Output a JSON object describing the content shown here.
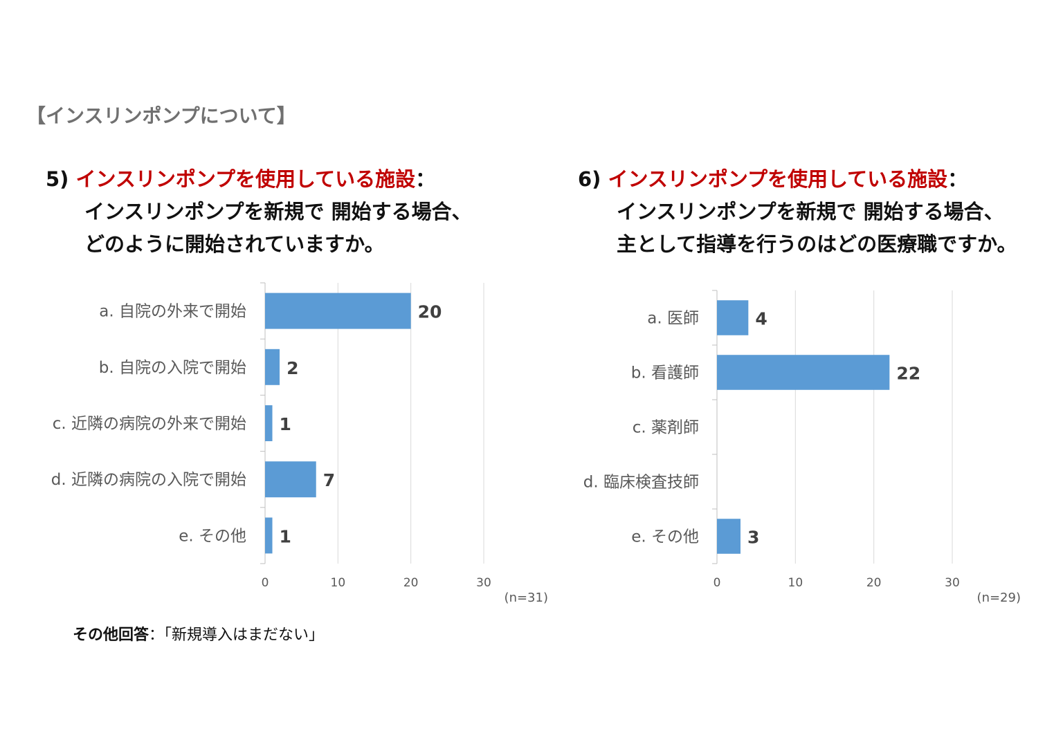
{
  "section_title": "【インスリンポンプについて】",
  "questions": [
    {
      "number": "5)",
      "title_red": "インスリンポンプを使用している施設",
      "colon": "：",
      "line2": "インスリンポンプを新規で 開始する場合、",
      "line3": "どのように開始されていますか。"
    },
    {
      "number": "6)",
      "title_red": "インスリンポンプを使用している施設",
      "colon": "：",
      "line2": "インスリンポンプを新規で 開始する場合、",
      "line3": "主として指導を行うのはどの医療職ですか。"
    }
  ],
  "chart_data": [
    {
      "type": "bar",
      "orientation": "horizontal",
      "categories": [
        "a. 自院の外来で開始",
        "b. 自院の入院で開始",
        "c. 近隣の病院の外来で開始",
        "d. 近隣の病院の入院で開始",
        "e. その他"
      ],
      "values": [
        20,
        2,
        1,
        7,
        1
      ],
      "xlim": [
        0,
        30
      ],
      "ticks": [
        0,
        10,
        20,
        30
      ],
      "tick_labels": [
        "0",
        "10",
        "20",
        "30"
      ],
      "note": "(n=31)",
      "grid": true,
      "bar_color": "#5b9bd5"
    },
    {
      "type": "bar",
      "orientation": "horizontal",
      "categories": [
        "a. 医師",
        "b. 看護師",
        "c. 薬剤師",
        "d. 臨床検査技師",
        "e. その他"
      ],
      "values": [
        4,
        22,
        null,
        null,
        3
      ],
      "xlim": [
        0,
        30
      ],
      "ticks": [
        0,
        10,
        20,
        30
      ],
      "tick_labels": [
        "0",
        "10",
        "20",
        "30"
      ],
      "note": "(n=29)",
      "grid": true,
      "bar_color": "#5b9bd5"
    }
  ],
  "footer": {
    "label": "その他回答",
    "sep": "：",
    "text": "「新規導入はまだない」"
  }
}
